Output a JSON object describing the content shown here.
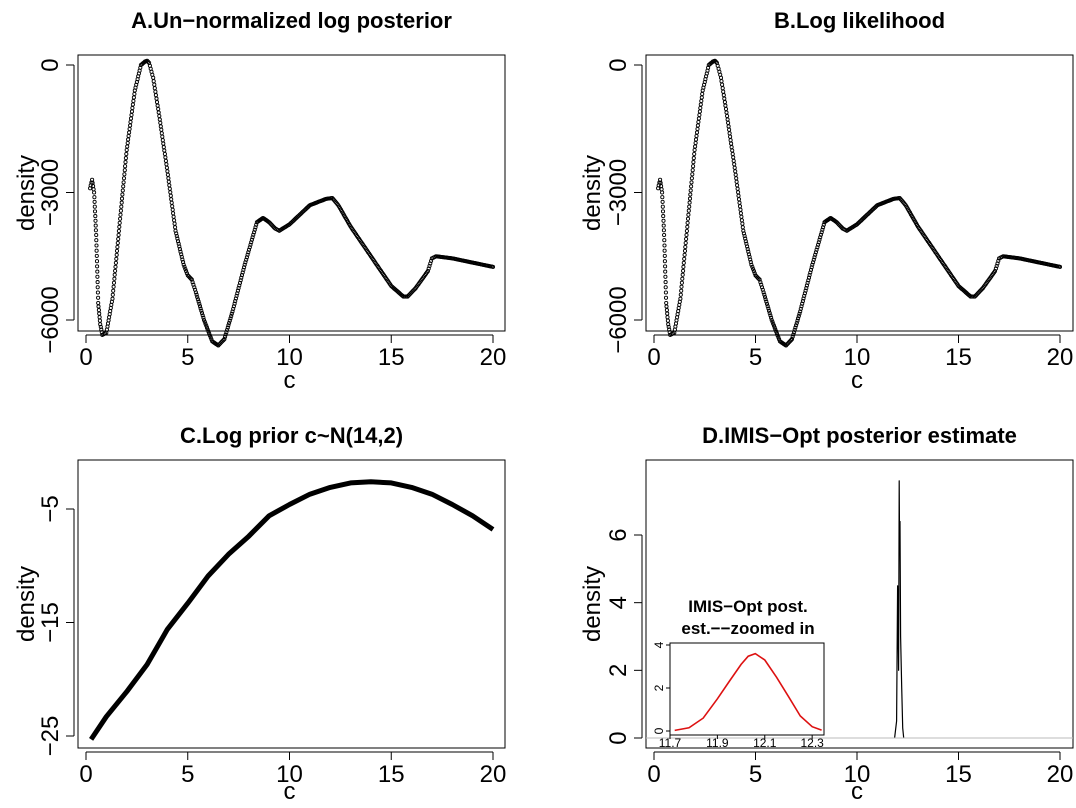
{
  "chart_data": [
    {
      "id": "A",
      "type": "scatter",
      "title": "A.Un−normalized log posterior",
      "xlabel": "c",
      "ylabel": "density",
      "xlim": [
        0,
        20
      ],
      "ylim": [
        -6500,
        200
      ],
      "xticks": [
        "0",
        "5",
        "10",
        "15",
        "20"
      ],
      "yticks": [
        "−6000",
        "−3000",
        "0"
      ],
      "grid": false,
      "marker": "open-circle",
      "x": [
        0.2,
        0.3,
        0.4,
        0.5,
        0.6,
        0.7,
        0.8,
        1.0,
        1.3,
        1.6,
        2.0,
        2.4,
        2.7,
        2.9,
        3.0,
        3.1,
        3.3,
        3.6,
        4.0,
        4.4,
        4.8,
        5.0,
        5.2,
        5.4,
        5.8,
        6.2,
        6.5,
        6.8,
        7.2,
        7.8,
        8.4,
        8.7,
        9.0,
        9.3,
        9.5,
        10.0,
        11.0,
        11.8,
        12.1,
        12.4,
        13.0,
        14.0,
        15.0,
        15.6,
        15.8,
        16.2,
        16.8,
        17.0,
        17.2,
        18.0,
        19.0,
        20.0
      ],
      "y": [
        -2900,
        -2700,
        -3000,
        -4000,
        -5600,
        -6100,
        -6350,
        -6300,
        -5500,
        -4000,
        -2000,
        -600,
        0,
        80,
        100,
        50,
        -300,
        -1200,
        -2500,
        -3900,
        -4700,
        -4950,
        -5050,
        -5350,
        -6000,
        -6500,
        -6600,
        -6450,
        -5800,
        -4700,
        -3700,
        -3600,
        -3700,
        -3850,
        -3900,
        -3750,
        -3300,
        -3150,
        -3130,
        -3300,
        -3800,
        -4500,
        -5200,
        -5450,
        -5450,
        -5250,
        -4850,
        -4550,
        -4500,
        -4550,
        -4650,
        -4750
      ]
    },
    {
      "id": "B",
      "type": "scatter",
      "title": "B.Log likelihood",
      "xlabel": "c",
      "ylabel": "density",
      "xlim": [
        0,
        20
      ],
      "ylim": [
        -6500,
        200
      ],
      "xticks": [
        "0",
        "5",
        "10",
        "15",
        "20"
      ],
      "yticks": [
        "−6000",
        "−3000",
        "0"
      ],
      "grid": false,
      "marker": "open-circle",
      "x": [
        0.2,
        0.3,
        0.4,
        0.5,
        0.6,
        0.7,
        0.8,
        1.0,
        1.3,
        1.6,
        2.0,
        2.4,
        2.7,
        2.9,
        3.0,
        3.1,
        3.3,
        3.6,
        4.0,
        4.4,
        4.8,
        5.0,
        5.2,
        5.4,
        5.8,
        6.2,
        6.5,
        6.8,
        7.2,
        7.8,
        8.4,
        8.7,
        9.0,
        9.3,
        9.5,
        10.0,
        11.0,
        11.8,
        12.1,
        12.4,
        13.0,
        14.0,
        15.0,
        15.6,
        15.8,
        16.2,
        16.8,
        17.0,
        17.2,
        18.0,
        19.0,
        20.0
      ],
      "y": [
        -2900,
        -2700,
        -3000,
        -4000,
        -5600,
        -6100,
        -6350,
        -6300,
        -5500,
        -4000,
        -2000,
        -600,
        0,
        80,
        100,
        50,
        -300,
        -1200,
        -2500,
        -3900,
        -4700,
        -4950,
        -5050,
        -5350,
        -6000,
        -6500,
        -6600,
        -6450,
        -5800,
        -4700,
        -3700,
        -3600,
        -3700,
        -3850,
        -3900,
        -3750,
        -3300,
        -3150,
        -3130,
        -3300,
        -3800,
        -4500,
        -5200,
        -5450,
        -5450,
        -5250,
        -4850,
        -4550,
        -4500,
        -4550,
        -4650,
        -4750
      ]
    },
    {
      "id": "C",
      "type": "line",
      "title": "C.Log prior c~N(14,2)",
      "xlabel": "c",
      "ylabel": "density",
      "xlim": [
        0,
        20
      ],
      "ylim": [
        -27,
        -1
      ],
      "xticks": [
        "0",
        "5",
        "10",
        "15",
        "20"
      ],
      "yticks": [
        "−25",
        "−15",
        "−5"
      ],
      "grid": false,
      "x": [
        0.25,
        1,
        2,
        3,
        4,
        5,
        6,
        7,
        8,
        9,
        10,
        11,
        12,
        13,
        14,
        15,
        16,
        17,
        18,
        19,
        20
      ],
      "y": [
        -25.3,
        -23.3,
        -21.1,
        -18.7,
        -15.6,
        -13.3,
        -10.9,
        -9.0,
        -7.4,
        -5.6,
        -4.6,
        -3.7,
        -3.1,
        -2.7,
        -2.6,
        -2.7,
        -3.1,
        -3.7,
        -4.6,
        -5.6,
        -6.8
      ]
    },
    {
      "id": "D",
      "type": "line",
      "title": "D.IMIS−Opt posterior estimate",
      "xlabel": "c",
      "ylabel": "density",
      "xlim": [
        0,
        20
      ],
      "ylim": [
        0,
        7.8
      ],
      "xticks": [
        "0",
        "5",
        "10",
        "15",
        "20"
      ],
      "yticks": [
        "0",
        "2",
        "4",
        "6"
      ],
      "grid": false,
      "x": [
        11.85,
        11.95,
        12.0,
        12.05,
        12.08,
        12.1,
        12.12,
        12.15,
        12.2,
        12.25,
        12.3
      ],
      "y": [
        0,
        0.5,
        4.5,
        2.0,
        7.6,
        5.5,
        6.4,
        3.0,
        1.5,
        0.3,
        0
      ],
      "inset": {
        "title_lines": [
          "IMIS−Opt post.",
          "est.−−zoomed in"
        ],
        "type": "line",
        "color": "#dd1111",
        "xlim": [
          11.7,
          12.35
        ],
        "ylim": [
          0,
          4
        ],
        "xticks": [
          "11.7",
          "11.9",
          "12.1",
          "12.3"
        ],
        "yticks": [
          "0",
          "2",
          "4"
        ],
        "x": [
          11.72,
          11.78,
          11.84,
          11.9,
          11.95,
          12.0,
          12.03,
          12.06,
          12.1,
          12.15,
          12.2,
          12.25,
          12.3,
          12.34
        ],
        "y": [
          0.03,
          0.15,
          0.6,
          1.5,
          2.3,
          3.1,
          3.48,
          3.6,
          3.3,
          2.5,
          1.6,
          0.7,
          0.2,
          0.04
        ]
      }
    }
  ]
}
